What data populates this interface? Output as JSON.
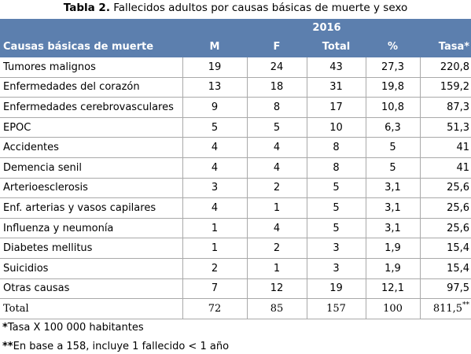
{
  "caption": {
    "bold": "Tabla 2.",
    "text": " Fallecidos adultos por causas básicas de muerte y sexo"
  },
  "header": {
    "year": "2016",
    "columns": [
      "Causas básicas de muerte",
      "M",
      "F",
      "Total",
      "%",
      "Tasa*"
    ]
  },
  "rows": [
    [
      "Tumores malignos",
      "19",
      "24",
      "43",
      "27,3",
      "220,8"
    ],
    [
      "Enfermedades del corazón",
      "13",
      "18",
      "31",
      "19,8",
      "159,2"
    ],
    [
      "Enfermedades cerebrovasculares",
      "9",
      "8",
      "17",
      "10,8",
      "87,3"
    ],
    [
      "EPOC",
      "5",
      "5",
      "10",
      "6,3",
      "51,3"
    ],
    [
      "Accidentes",
      "4",
      "4",
      "8",
      "5",
      "41"
    ],
    [
      "Demencia senil",
      "4",
      "4",
      "8",
      "5",
      "41"
    ],
    [
      "Arterioesclerosis",
      "3",
      "2",
      "5",
      "3,1",
      "25,6"
    ],
    [
      "Enf. arterias y vasos capilares",
      "4",
      "1",
      "5",
      "3,1",
      "25,6"
    ],
    [
      "Influenza y neumonía",
      "1",
      "4",
      "5",
      "3,1",
      "25,6"
    ],
    [
      "Diabetes mellitus",
      "1",
      "2",
      "3",
      "1,9",
      "15,4"
    ],
    [
      "Suicidios",
      "2",
      "1",
      "3",
      "1,9",
      "15,4"
    ],
    [
      "Otras causas",
      "7",
      "12",
      "19",
      "12,1",
      "97,5"
    ]
  ],
  "total": [
    "Total",
    "72",
    "85",
    "157",
    "100",
    "811,5",
    "**"
  ],
  "notes": [
    {
      "mark": "*",
      "text": "Tasa X 100 000 habitantes"
    },
    {
      "mark": "**",
      "text": "En base a 158, incluye 1 fallecido < 1 año"
    }
  ]
}
